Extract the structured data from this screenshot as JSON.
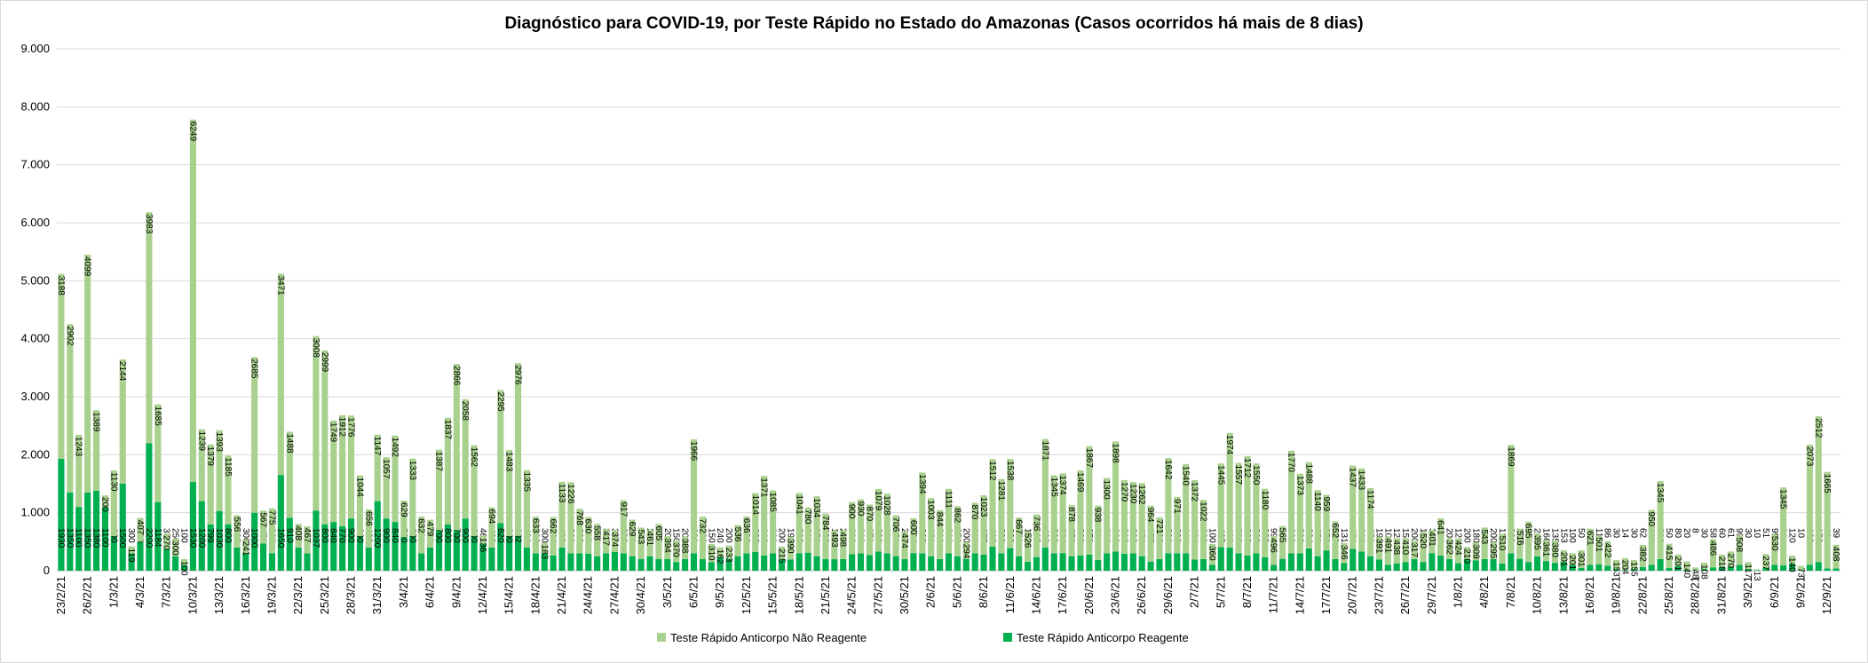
{
  "chart_data": {
    "type": "stacked_bar",
    "title": "Diagnóstico para COVID-19, por Teste Rápido no Estado do Amazonas (Casos ocorridos há mais de 8 dias)",
    "categories": [
      "23/2/21",
      null,
      null,
      "26/2/21",
      null,
      null,
      "1/3/21",
      null,
      null,
      "4/3/21",
      null,
      null,
      "7/3/21",
      null,
      null,
      "10/3/21",
      null,
      null,
      "13/3/21",
      null,
      null,
      "16/3/21",
      null,
      null,
      "19/3/21",
      null,
      null,
      "22/3/21",
      null,
      null,
      "25/3/21",
      null,
      null,
      "28/3/21",
      null,
      null,
      "31/3/21",
      null,
      null,
      "3/4/21",
      null,
      null,
      "6/4/21",
      null,
      null,
      "9/4/21",
      null,
      null,
      "12/4/21",
      null,
      null,
      "15/4/21",
      null,
      null,
      "18/4/21",
      null,
      null,
      "21/4/21",
      null,
      null,
      "24/4/21",
      null,
      null,
      "27/4/21",
      null,
      null,
      "30/4/21",
      null,
      null,
      "3/5/21",
      null,
      null,
      "6/5/21",
      null,
      null,
      "9/5/21",
      null,
      null,
      "12/5/21",
      null,
      null,
      "15/5/21",
      null,
      null,
      "18/5/21",
      null,
      null,
      "21/5/21",
      null,
      null,
      "24/5/21",
      null,
      null,
      "27/5/21",
      null,
      null,
      "30/5/21",
      null,
      null,
      "2/6/21",
      null,
      null,
      "5/6/21",
      null,
      null,
      "8/6/21",
      null,
      null,
      "11/6/21",
      null,
      null,
      "14/6/21",
      null,
      null,
      "17/6/21",
      null,
      null,
      "20/6/21",
      null,
      null,
      "23/6/21",
      null,
      null,
      "26/6/21",
      null,
      null,
      "29/6/21",
      null,
      null,
      "2/7/21",
      null,
      null,
      "5/7/21",
      null,
      null,
      "8/7/21",
      null,
      null,
      "11/7/21",
      null,
      null,
      "14/7/21",
      null,
      null,
      "17/7/21",
      null,
      null,
      "20/7/21",
      null,
      null,
      "23/7/21",
      null,
      null,
      "26/7/21",
      null,
      null,
      "29/7/21",
      null,
      null,
      "1/8/21",
      null,
      null,
      "4/8/21",
      null,
      null,
      "7/8/21",
      null,
      null,
      "10/8/21",
      null,
      null,
      "13/8/21",
      null,
      null,
      "16/8/21",
      null,
      null,
      "19/8/21",
      null,
      null,
      "22/8/21",
      null,
      null,
      "25/8/21",
      null,
      null,
      "28/8/21",
      null,
      null,
      "31/8/21",
      null,
      null,
      "3/9/21",
      null,
      null,
      "6/9/21",
      null,
      null,
      "9/9/21",
      null,
      null,
      "12/9/21",
      null
    ],
    "series": [
      {
        "name": "Teste Rápido Anticorpo Não Reagente",
        "color": "#a9d18e",
        "values": [
          3188,
          2902,
          1243,
          4099,
          1389,
          200,
          1130,
          2144,
          119,
          407,
          3983,
          1685,
          270,
          300,
          100,
          6249,
          1239,
          1379,
          1393,
          1185,
          556,
          241,
          2685,
          567,
          775,
          3471,
          1488,
          408,
          467,
          3008,
          2999,
          1749,
          1912,
          1776,
          1044,
          656,
          1147,
          1057,
          1492,
          629,
          1333,
          632,
          479,
          1387,
          1837,
          2866,
          2058,
          1562,
          136,
          694,
          2295,
          1483,
          2976,
          1335,
          633,
          183,
          662,
          1133,
          1226,
          768,
          630,
          558,
          417,
          374,
          917,
          629,
          543,
          461,
          605,
          394,
          370,
          388,
          1966,
          732,
          310,
          162,
          233,
          536,
          636,
          1014,
          1371,
          1085,
          215,
          390,
          1041,
          780,
          1034,
          784,
          493,
          498,
          900,
          930,
          870,
          1079,
          1028,
          706,
          474,
          600,
          1394,
          1003,
          844,
          1111,
          862,
          294,
          870,
          1023,
          1512,
          1281,
          1538,
          667,
          526,
          736,
          1871,
          1345,
          1374,
          878,
          1469,
          1867,
          938,
          1300,
          1898,
          1270,
          1230,
          1262,
          964,
          721,
          1642,
          971,
          1540,
          1372,
          1022,
          360,
          1445,
          1974,
          1557,
          1712,
          1550,
          1180,
          496,
          565,
          1770,
          1373,
          1488,
          1140,
          959,
          652,
          346,
          1437,
          1433,
          1174,
          391,
          491,
          438,
          410,
          317,
          520,
          401,
          641,
          362,
          424,
          210,
          309,
          543,
          295,
          510,
          1869,
          516,
          695,
          395,
          361,
          380,
          201,
          201,
          301,
          621,
          501,
          422,
          153,
          204,
          155,
          382,
          950,
          1345,
          415,
          201,
          140,
          48,
          108,
          486,
          218,
          270,
          508,
          117,
          13,
          237,
          530,
          1345,
          140,
          73,
          2073,
          2512,
          1665,
          408
        ]
      },
      {
        "name": "Teste Rápido Anticorpo Reagente",
        "color": "#00b050",
        "values": [
          1930,
          1350,
          1100,
          1350,
          1380,
          1100,
          600,
          1500,
          300,
          500,
          2200,
          1184,
          370,
          250,
          100,
          1530,
          1200,
          799,
          1030,
          800,
          400,
          300,
          1000,
          470,
          300,
          1650,
          910,
          400,
          300,
          1037,
          800,
          840,
          770,
          900,
          600,
          400,
          1200,
          900,
          840,
          580,
          600,
          300,
          400,
          700,
          800,
          700,
          900,
          600,
          468,
          400,
          820,
          600,
          602,
          400,
          300,
          300,
          264,
          400,
          300,
          300,
          295,
          250,
          300,
          322,
          300,
          250,
          200,
          250,
          200,
          200,
          150,
          200,
          300,
          200,
          150,
          240,
          200,
          250,
          300,
          323,
          263,
          300,
          200,
          193,
          300,
          311,
          250,
          200,
          198,
          200,
          283,
          300,
          270,
          330,
          300,
          250,
          200,
          304,
          300,
          250,
          200,
          300,
          250,
          200,
          300,
          277,
          413,
          300,
          389,
          250,
          153,
          235,
          400,
          300,
          304,
          250,
          260,
          279,
          184,
          300,
          330,
          292,
          300,
          250,
          157,
          200,
          301,
          300,
          300,
          191,
          200,
          100,
          405,
          400,
          300,
          263,
          300,
          233,
          99,
          205,
          300,
          300,
          384,
          250,
          350,
          200,
          131,
          376,
          330,
          250,
          193,
          100,
          122,
          150,
          200,
          150,
          302,
          260,
          200,
          129,
          200,
          180,
          200,
          200,
          124,
          300,
          205,
          150,
          247,
          166,
          135,
          153,
          100,
          50,
          100,
          110,
          86,
          30,
          14,
          30,
          62,
          100,
          200,
          50,
          80,
          20,
          8,
          30,
          58,
          60,
          61,
          99,
          30,
          10,
          51,
          99,
          91,
          120,
          10,
          100,
          150,
          40,
          39
        ]
      }
    ],
    "ylim": [
      0,
      9000
    ],
    "yticks": [
      0,
      {
        "value": 1000,
        "label": "1.000"
      },
      {
        "value": 2000,
        "label": "2.000"
      },
      {
        "value": 3000,
        "label": "3.000"
      },
      {
        "value": 4000,
        "label": "4.000"
      },
      {
        "value": 5000,
        "label": "5.000"
      },
      {
        "value": 6000,
        "label": "6.000"
      },
      {
        "value": 7000,
        "label": "7.000"
      },
      {
        "value": 8000,
        "label": "8.000"
      },
      {
        "value": 9000,
        "label": "9.000"
      }
    ],
    "grid": true,
    "legend": "bottom"
  }
}
